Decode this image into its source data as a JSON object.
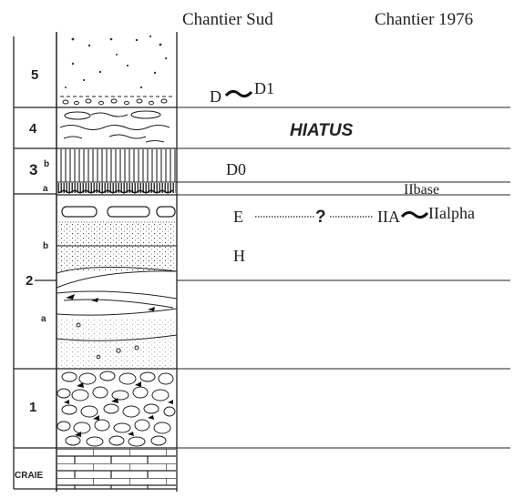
{
  "columns": {
    "left_header": "Chantier Sud",
    "right_header": "Chantier 1976"
  },
  "units": [
    {
      "id": "5",
      "label": "5"
    },
    {
      "id": "4",
      "label": "4"
    },
    {
      "id": "3",
      "label": "3",
      "sub_b": "b",
      "sub_a": "a"
    },
    {
      "id": "2",
      "label": "2",
      "sub_b": "b",
      "sub_a": "a"
    },
    {
      "id": "1",
      "label": "1"
    },
    {
      "id": "craie",
      "label": "CRAIE"
    }
  ],
  "correlations": {
    "d": "D",
    "d1": "D1",
    "hiatus": "HIATUS",
    "d0": "D0",
    "iibase": "IIbase",
    "e": "E",
    "question": "?",
    "iia": "IIA",
    "iialpha": "IIalpha",
    "h": "H"
  }
}
